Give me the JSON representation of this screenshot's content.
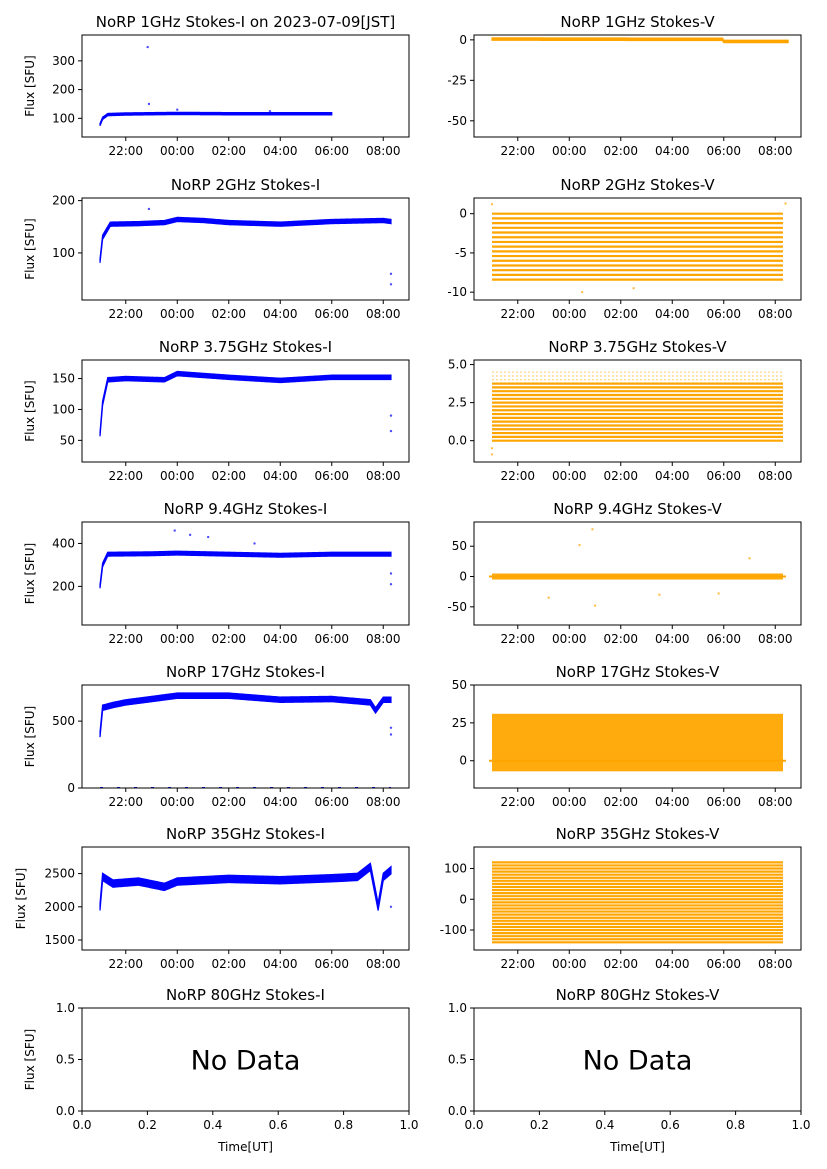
{
  "figure": {
    "x_time_ticks": [
      "22:00",
      "00:00",
      "02:00",
      "04:00",
      "06:00",
      "08:00"
    ],
    "x_numeric_ticks": [
      "0.0",
      "0.2",
      "0.4",
      "0.6",
      "0.8",
      "1.0"
    ],
    "xlabel": "Time[UT]",
    "ylabel": "Flux [SFU]",
    "no_data_text": "No Data",
    "colors": {
      "stokes_i": "#0000ff",
      "stokes_v": "#ffa500"
    }
  },
  "chart_data": [
    {
      "id": "i1",
      "type": "scatter",
      "title": "NoRP 1GHz Stokes-I on 2023-07-09[JST]",
      "ylabel": "Flux [SFU]",
      "ylim": [
        35,
        390
      ],
      "yticks": [
        100,
        200,
        300
      ],
      "series": [
        {
          "values": [
            [
              21.0,
              78
            ],
            [
              21.1,
              100
            ],
            [
              21.3,
              113
            ],
            [
              22.0,
              115
            ],
            [
              23.0,
              116
            ],
            [
              24.0,
              117
            ],
            [
              26.0,
              116
            ],
            [
              28.0,
              116
            ],
            [
              30.0,
              116
            ]
          ]
        }
      ],
      "spikes": [
        [
          22.85,
          348
        ],
        [
          22.9,
          150
        ],
        [
          24.0,
          130
        ],
        [
          27.6,
          125
        ]
      ],
      "band": 8,
      "x_end": 30.0
    },
    {
      "id": "v1",
      "type": "scatter",
      "title": "NoRP 1GHz Stokes-V",
      "ylim": [
        -60,
        3
      ],
      "yticks": [
        0,
        -25,
        -50
      ],
      "series": [
        {
          "values": [
            [
              21.0,
              0.5
            ],
            [
              25.0,
              0.4
            ],
            [
              29.98,
              0.3
            ],
            [
              30.0,
              -1
            ],
            [
              32.5,
              -1
            ]
          ]
        }
      ],
      "band": 1.5,
      "x_end": 32.5
    },
    {
      "id": "i2",
      "type": "scatter",
      "title": "NoRP 2GHz Stokes-I",
      "ylabel": "Flux [SFU]",
      "ylim": [
        10,
        205
      ],
      "yticks": [
        100,
        200
      ],
      "series": [
        {
          "values": [
            [
              21.0,
              85
            ],
            [
              21.1,
              130
            ],
            [
              21.4,
              155
            ],
            [
              22.5,
              156
            ],
            [
              23.5,
              158
            ],
            [
              24.0,
              164
            ],
            [
              25.0,
              162
            ],
            [
              26.0,
              158
            ],
            [
              28.0,
              155
            ],
            [
              30.0,
              160
            ],
            [
              32.0,
              162
            ],
            [
              32.3,
              160
            ]
          ]
        }
      ],
      "spikes": [
        [
          22.9,
          184
        ],
        [
          32.3,
          60
        ],
        [
          32.3,
          40
        ]
      ],
      "band": 8,
      "x_end": 32.3
    },
    {
      "id": "v2",
      "type": "scatter",
      "title": "NoRP 2GHz Stokes-V",
      "ylim": [
        -11,
        2
      ],
      "yticks": [
        0,
        -5,
        -10
      ],
      "levels": [
        0,
        -0.6,
        -1.2,
        -1.8,
        -2.4,
        -3,
        -3.6,
        -4.2,
        -4.8,
        -5.4,
        -6,
        -6.6,
        -7.2,
        -7.8,
        -8.4
      ],
      "spikes": [
        [
          21.0,
          1.2
        ],
        [
          24.5,
          -10
        ],
        [
          26.5,
          -9.5
        ],
        [
          32.4,
          1.3
        ]
      ],
      "x_end": 32.3
    },
    {
      "id": "i3",
      "type": "scatter",
      "title": "NoRP 3.75GHz Stokes-I",
      "ylabel": "Flux [SFU]",
      "ylim": [
        15,
        180
      ],
      "yticks": [
        50,
        100,
        150
      ],
      "series": [
        {
          "values": [
            [
              21.0,
              60
            ],
            [
              21.1,
              110
            ],
            [
              21.3,
              148
            ],
            [
              22.0,
              150
            ],
            [
              23.5,
              148
            ],
            [
              24.0,
              158
            ],
            [
              25.0,
              155
            ],
            [
              26.0,
              152
            ],
            [
              28.0,
              147
            ],
            [
              30.0,
              152
            ],
            [
              32.3,
              152
            ]
          ]
        }
      ],
      "spikes": [
        [
          32.3,
          90
        ],
        [
          32.3,
          65
        ]
      ],
      "band": 7,
      "x_end": 32.3
    },
    {
      "id": "v3",
      "type": "scatter",
      "title": "NoRP 3.75GHz Stokes-V",
      "ylim": [
        -1.4,
        5.3
      ],
      "yticks": [
        5.0,
        2.5,
        0.0
      ],
      "levels": [
        0,
        0.25,
        0.5,
        0.75,
        1,
        1.25,
        1.5,
        1.75,
        2,
        2.25,
        2.5,
        2.75,
        3,
        3.25,
        3.5,
        3.75
      ],
      "upper_levels": [
        4.0,
        4.25,
        4.5
      ],
      "spikes": [
        [
          21.0,
          -0.9
        ],
        [
          21.0,
          -0.5
        ]
      ],
      "x_end": 32.3
    },
    {
      "id": "i4",
      "type": "scatter",
      "title": "NoRP 9.4GHz Stokes-I",
      "ylabel": "Flux [SFU]",
      "ylim": [
        20,
        500
      ],
      "yticks": [
        200,
        400
      ],
      "series": [
        {
          "values": [
            [
              21.0,
              200
            ],
            [
              21.1,
              300
            ],
            [
              21.3,
              350
            ],
            [
              23.0,
              352
            ],
            [
              24.0,
              355
            ],
            [
              26.0,
              350
            ],
            [
              28.0,
              345
            ],
            [
              30.0,
              350
            ],
            [
              32.3,
              350
            ]
          ]
        }
      ],
      "spikes": [
        [
          23.9,
          460
        ],
        [
          24.5,
          440
        ],
        [
          25.2,
          430
        ],
        [
          27.0,
          400
        ],
        [
          32.3,
          260
        ],
        [
          32.3,
          210
        ]
      ],
      "band": 18,
      "x_end": 32.3
    },
    {
      "id": "v4",
      "type": "scatter",
      "title": "NoRP 9.4GHz Stokes-V",
      "ylim": [
        -80,
        90
      ],
      "yticks": [
        50,
        0,
        -50
      ],
      "band_center": 0,
      "band": 10,
      "spikes": [
        [
          23.2,
          -35
        ],
        [
          24.4,
          52
        ],
        [
          24.9,
          78
        ],
        [
          25.0,
          -48
        ],
        [
          27.5,
          -30
        ],
        [
          29.8,
          -28
        ],
        [
          31.0,
          30
        ]
      ],
      "x_end": 32.3
    },
    {
      "id": "i5",
      "type": "scatter",
      "title": "NoRP 17GHz Stokes-I",
      "ylabel": "Flux [SFU]",
      "ylim": [
        0,
        770
      ],
      "yticks": [
        0,
        500
      ],
      "series": [
        {
          "values": [
            [
              21.0,
              400
            ],
            [
              21.1,
              600
            ],
            [
              21.5,
              620
            ],
            [
              22.0,
              640
            ],
            [
              24.0,
              690
            ],
            [
              26.0,
              690
            ],
            [
              28.0,
              660
            ],
            [
              30.0,
              665
            ],
            [
              31.5,
              640
            ],
            [
              31.7,
              580
            ],
            [
              32.0,
              660
            ],
            [
              32.3,
              660
            ]
          ]
        }
      ],
      "spikes": [
        [
          32.3,
          450
        ],
        [
          32.3,
          400
        ]
      ],
      "baseline": 0,
      "band": 40,
      "x_end": 32.3
    },
    {
      "id": "v5",
      "type": "scatter",
      "title": "NoRP 17GHz Stokes-V",
      "ylim": [
        -18,
        50
      ],
      "yticks": [
        50,
        25,
        0
      ],
      "band_center": 12,
      "band": 38,
      "x_end": 32.3
    },
    {
      "id": "i6",
      "type": "scatter",
      "title": "NoRP 35GHz Stokes-I",
      "ylabel": "Flux [SFU]",
      "ylim": [
        1350,
        2900
      ],
      "yticks": [
        1500,
        2000,
        2500
      ],
      "series": [
        {
          "values": [
            [
              21.0,
              2000
            ],
            [
              21.1,
              2450
            ],
            [
              21.5,
              2350
            ],
            [
              22.5,
              2380
            ],
            [
              23.5,
              2300
            ],
            [
              24.0,
              2380
            ],
            [
              26.0,
              2420
            ],
            [
              28.0,
              2400
            ],
            [
              30.0,
              2430
            ],
            [
              31.0,
              2450
            ],
            [
              31.5,
              2600
            ],
            [
              31.8,
              2000
            ],
            [
              32.0,
              2450
            ],
            [
              32.3,
              2550
            ]
          ]
        }
      ],
      "spikes": [
        [
          32.3,
          2000
        ]
      ],
      "band": 110,
      "x_end": 32.3
    },
    {
      "id": "v6",
      "type": "scatter",
      "title": "NoRP 35GHz Stokes-V",
      "ylim": [
        -165,
        170
      ],
      "yticks": [
        100,
        0,
        -100
      ],
      "band_levels_from": -140,
      "band_levels_to": 125,
      "band_levels_step": 10,
      "x_end": 32.3
    },
    {
      "id": "i7",
      "type": "empty",
      "title": "NoRP 80GHz Stokes-I",
      "ylabel": "Flux [SFU]",
      "xlabel": "Time[UT]",
      "ylim": [
        0,
        1
      ],
      "yticks": [
        "0.0",
        "0.5",
        "1.0"
      ]
    },
    {
      "id": "v7",
      "type": "empty",
      "title": "NoRP 80GHz Stokes-V",
      "xlabel": "Time[UT]",
      "ylim": [
        0,
        1
      ],
      "yticks": [
        "0.0",
        "0.5",
        "1.0"
      ]
    }
  ]
}
